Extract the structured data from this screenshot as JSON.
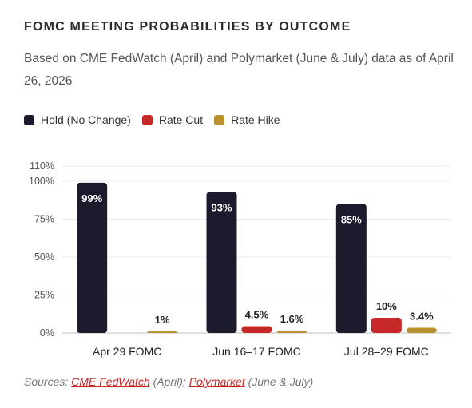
{
  "title": "FOMC MEETING PROBABILITIES BY OUTCOME",
  "subtitle": "Based on CME FedWatch (April) and Polymarket (June & July) data as of April 26, 2026",
  "legend": [
    {
      "label": "Hold (No Change)",
      "color": "#1c1b2d"
    },
    {
      "label": "Rate Cut",
      "color": "#c62828"
    },
    {
      "label": "Rate Hike",
      "color": "#b8922e"
    }
  ],
  "chart_data": {
    "type": "bar",
    "categories": [
      "Apr 29 FOMC",
      "Jun 16–17 FOMC",
      "Jul 28–29 FOMC"
    ],
    "series": [
      {
        "name": "Hold (No Change)",
        "color": "#1c1b2d",
        "values": [
          99,
          93,
          85
        ],
        "labels": [
          "99%",
          "93%",
          "85%"
        ]
      },
      {
        "name": "Rate Cut",
        "color": "#c62828",
        "values": [
          null,
          4.5,
          10
        ],
        "labels": [
          "",
          "4.5%",
          "10%"
        ]
      },
      {
        "name": "Rate Hike",
        "color": "#b8922e",
        "values": [
          1,
          1.6,
          3.4
        ],
        "labels": [
          "1%",
          "1.6%",
          "3.4%"
        ]
      }
    ],
    "yticks": [
      0,
      25,
      50,
      75,
      100,
      110
    ],
    "ytick_labels": [
      "0%",
      "25%",
      "50%",
      "75%",
      "100%",
      "110%"
    ],
    "ylim": [
      0,
      110
    ],
    "grid": true,
    "legend_position": "top-left"
  },
  "sources": {
    "prefix": "Sources: ",
    "link1": "CME FedWatch",
    "middle": " (April); ",
    "link2": "Polymarket",
    "suffix": " (June & July)"
  }
}
